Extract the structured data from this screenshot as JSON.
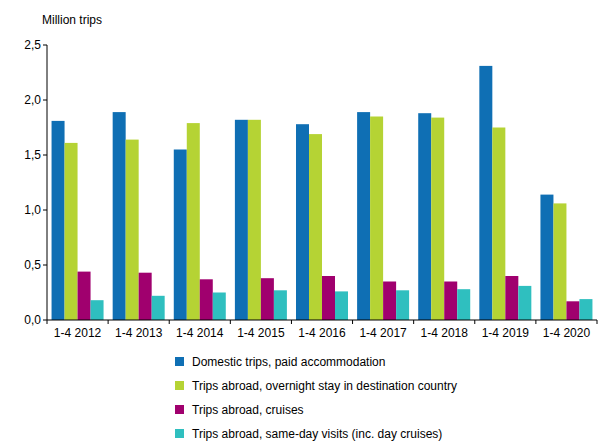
{
  "chart_data": {
    "type": "bar",
    "y_label": "Million trips",
    "categories": [
      "1-4 2012",
      "1-4 2013",
      "1-4 2014",
      "1-4 2015",
      "1-4 2016",
      "1-4 2017",
      "1-4 2018",
      "1-4 2019",
      "1-4 2020"
    ],
    "series": [
      {
        "name": "Domestic trips, paid accommodation",
        "color": "#0f6fb4",
        "values": [
          1.81,
          1.89,
          1.55,
          1.82,
          1.78,
          1.89,
          1.88,
          2.31,
          1.14
        ]
      },
      {
        "name": "Trips abroad, overnight stay in destination country",
        "color": "#b5d334",
        "values": [
          1.61,
          1.64,
          1.79,
          1.82,
          1.69,
          1.85,
          1.84,
          1.75,
          1.06
        ]
      },
      {
        "name": "Trips abroad, cruises",
        "color": "#a0006e",
        "values": [
          0.44,
          0.43,
          0.37,
          0.38,
          0.4,
          0.35,
          0.35,
          0.4,
          0.17
        ]
      },
      {
        "name": "Trips abroad, same-day visits (inc. day cruises)",
        "color": "#2fbfbf",
        "values": [
          0.18,
          0.22,
          0.25,
          0.27,
          0.26,
          0.27,
          0.28,
          0.31,
          0.19
        ]
      }
    ],
    "ylim": [
      0,
      2.5
    ],
    "yticks": [
      {
        "value": 0,
        "label": "0,0"
      },
      {
        "value": 0.5,
        "label": "0,5"
      },
      {
        "value": 1,
        "label": "1,0"
      },
      {
        "value": 1.5,
        "label": "1,5"
      },
      {
        "value": 2,
        "label": "2,0"
      },
      {
        "value": 2.5,
        "label": "2,5"
      }
    ],
    "grid": false,
    "legend": "bottom"
  }
}
